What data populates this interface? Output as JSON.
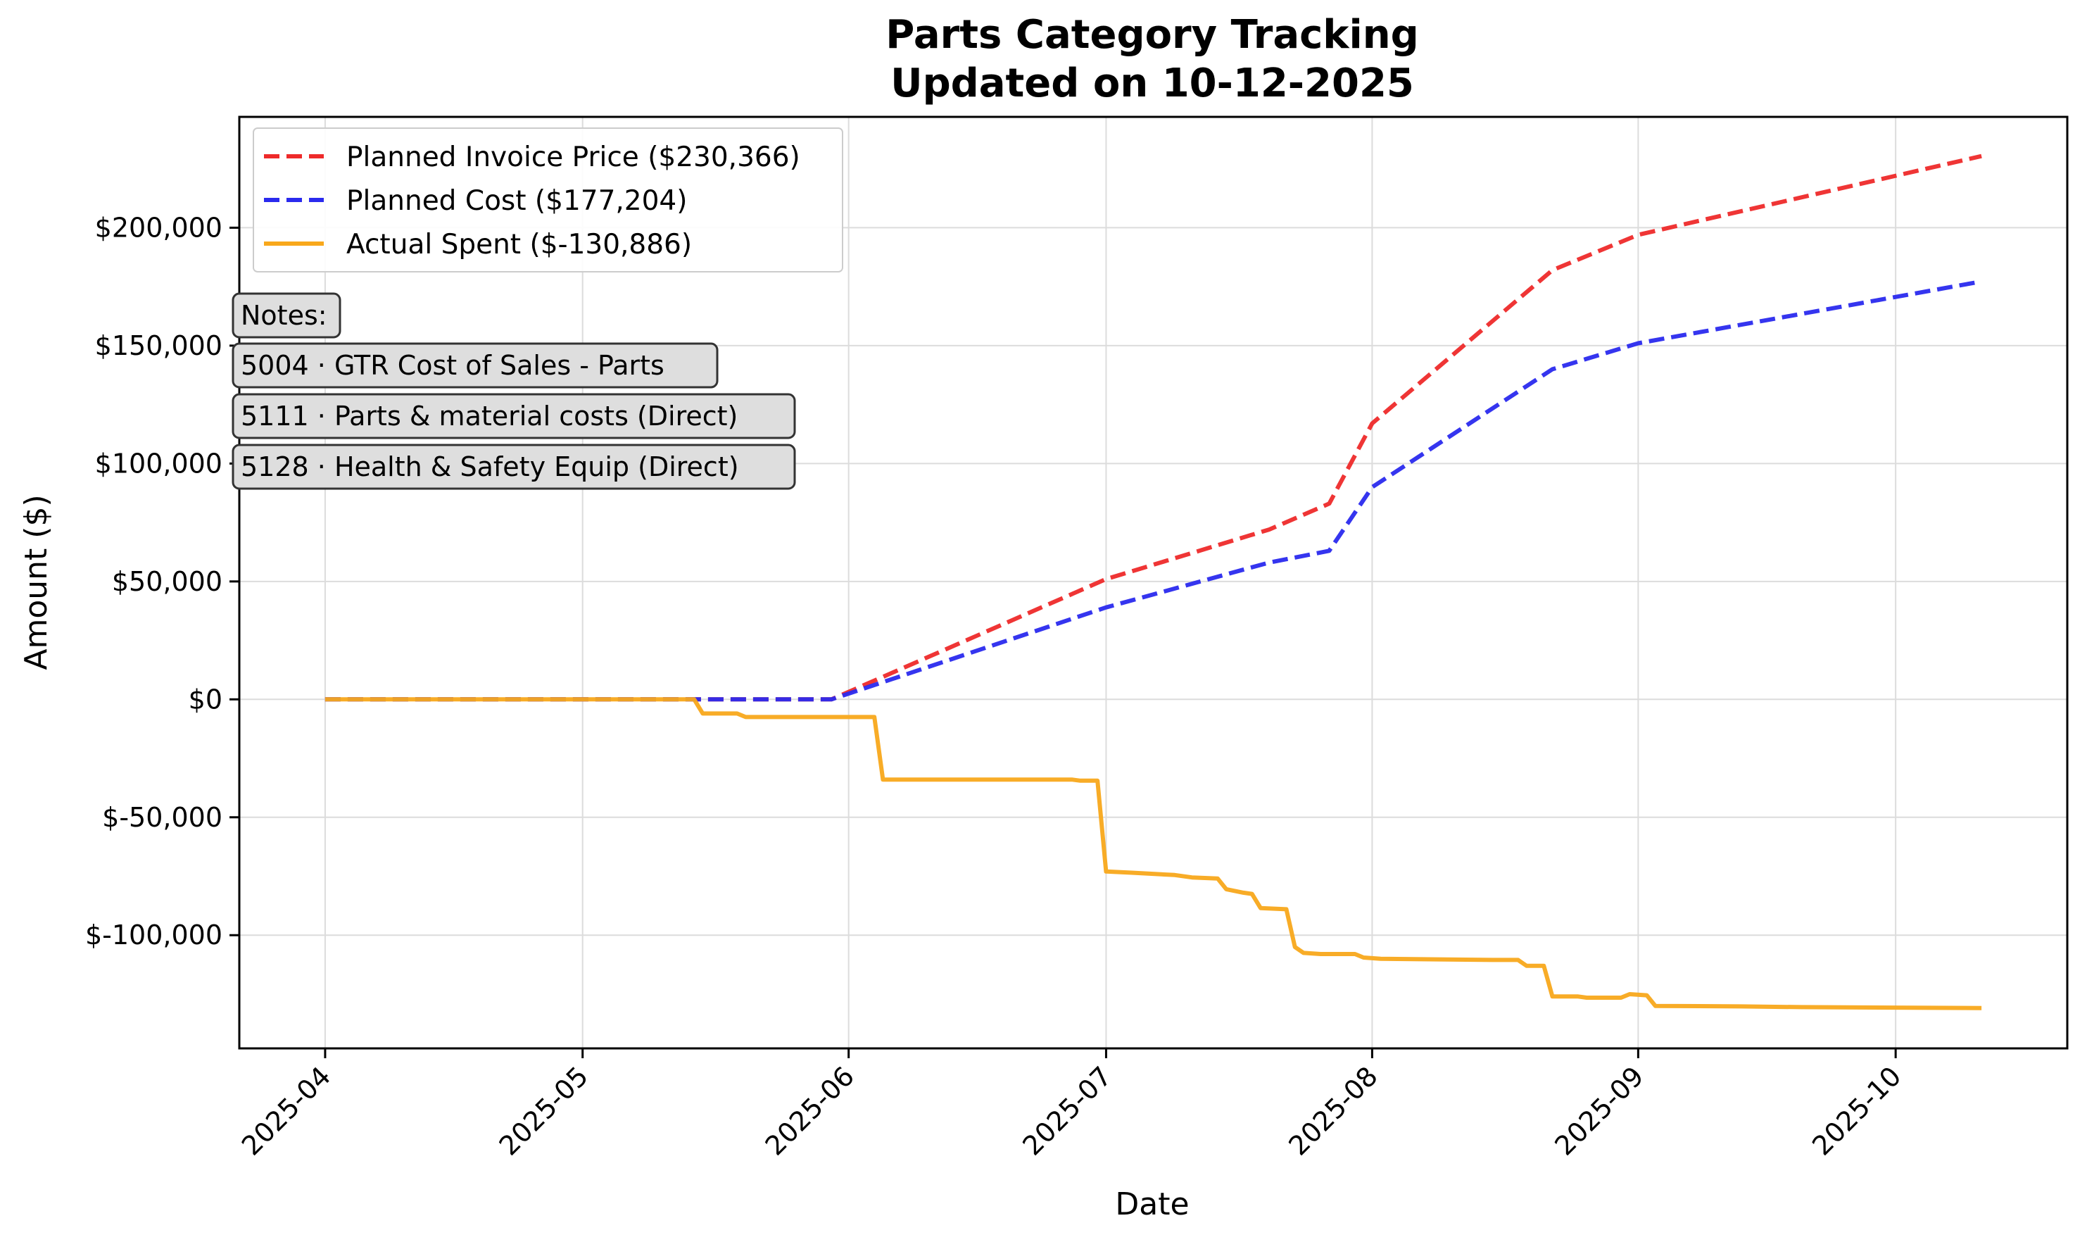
{
  "chart_data": {
    "type": "line",
    "title": [
      "Parts Category Tracking",
      "Updated on 10-12-2025"
    ],
    "xlabel": "Date",
    "ylabel": "Amount ($)",
    "x_type": "date",
    "xlim": [
      "2025-03-22",
      "2025-10-21"
    ],
    "ylim": [
      -148000,
      247000
    ],
    "grid": true,
    "legend_position": "upper-left",
    "x_ticks": [
      "2025-04-01",
      "2025-05-01",
      "2025-06-01",
      "2025-07-01",
      "2025-08-01",
      "2025-09-01",
      "2025-10-01"
    ],
    "x_tick_labels": [
      "2025-04",
      "2025-05",
      "2025-06",
      "2025-07",
      "2025-08",
      "2025-09",
      "2025-10"
    ],
    "y_ticks": [
      -100000,
      -50000,
      0,
      50000,
      100000,
      150000,
      200000
    ],
    "y_tick_labels": [
      "$-100,000",
      "$-50,000",
      "$0",
      "$50,000",
      "$100,000",
      "$150,000",
      "$200,000"
    ],
    "series": [
      {
        "name": "Planned Invoice Price ($230,366)",
        "color": "#ee2a2a",
        "style": "dashed",
        "points": [
          [
            "2025-04-01",
            0
          ],
          [
            "2025-05-30",
            0
          ],
          [
            "2025-07-01",
            51000
          ],
          [
            "2025-07-20",
            72000
          ],
          [
            "2025-07-27",
            83000
          ],
          [
            "2025-08-01",
            117000
          ],
          [
            "2025-08-22",
            182000
          ],
          [
            "2025-09-01",
            197000
          ],
          [
            "2025-10-11",
            230366
          ]
        ]
      },
      {
        "name": "Planned Cost ($177,204)",
        "color": "#2a2aee",
        "style": "dashed",
        "points": [
          [
            "2025-04-01",
            0
          ],
          [
            "2025-05-30",
            0
          ],
          [
            "2025-07-01",
            39000
          ],
          [
            "2025-07-20",
            58000
          ],
          [
            "2025-07-27",
            63000
          ],
          [
            "2025-08-01",
            90000
          ],
          [
            "2025-08-22",
            140000
          ],
          [
            "2025-09-01",
            151000
          ],
          [
            "2025-10-11",
            177204
          ]
        ]
      },
      {
        "name": "Actual Spent ($-130,886)",
        "color": "#f8a81b",
        "style": "solid",
        "points": [
          [
            "2025-04-01",
            0
          ],
          [
            "2025-05-14",
            0
          ],
          [
            "2025-05-15",
            -6000
          ],
          [
            "2025-05-19",
            -6000
          ],
          [
            "2025-05-20",
            -7500
          ],
          [
            "2025-06-04",
            -7500
          ],
          [
            "2025-06-05",
            -34000
          ],
          [
            "2025-06-27",
            -34000
          ],
          [
            "2025-06-28",
            -34500
          ],
          [
            "2025-06-30",
            -34500
          ],
          [
            "2025-07-01",
            -73000
          ],
          [
            "2025-07-04",
            -73500
          ],
          [
            "2025-07-09",
            -74500
          ],
          [
            "2025-07-11",
            -75500
          ],
          [
            "2025-07-14",
            -76000
          ],
          [
            "2025-07-15",
            -80500
          ],
          [
            "2025-07-17",
            -82000
          ],
          [
            "2025-07-18",
            -82500
          ],
          [
            "2025-07-19",
            -88500
          ],
          [
            "2025-07-22",
            -89000
          ],
          [
            "2025-07-23",
            -105000
          ],
          [
            "2025-07-24",
            -107500
          ],
          [
            "2025-07-26",
            -108000
          ],
          [
            "2025-07-30",
            -108000
          ],
          [
            "2025-07-31",
            -109500
          ],
          [
            "2025-08-02",
            -110000
          ],
          [
            "2025-08-15",
            -110500
          ],
          [
            "2025-08-18",
            -110500
          ],
          [
            "2025-08-19",
            -113000
          ],
          [
            "2025-08-21",
            -113000
          ],
          [
            "2025-08-22",
            -126000
          ],
          [
            "2025-08-25",
            -126000
          ],
          [
            "2025-08-26",
            -126500
          ],
          [
            "2025-08-30",
            -126500
          ],
          [
            "2025-08-31",
            -125000
          ],
          [
            "2025-09-02",
            -125500
          ],
          [
            "2025-09-03",
            -130000
          ],
          [
            "2025-09-13",
            -130200
          ],
          [
            "2025-09-20",
            -130500
          ],
          [
            "2025-10-11",
            -130886
          ]
        ]
      }
    ],
    "annotations": [
      "Notes:",
      "5004 · GTR  Cost of Sales - Parts",
      "5111 · Parts & material costs (Direct)",
      "5128 · Health & Safety Equip (Direct)"
    ]
  }
}
